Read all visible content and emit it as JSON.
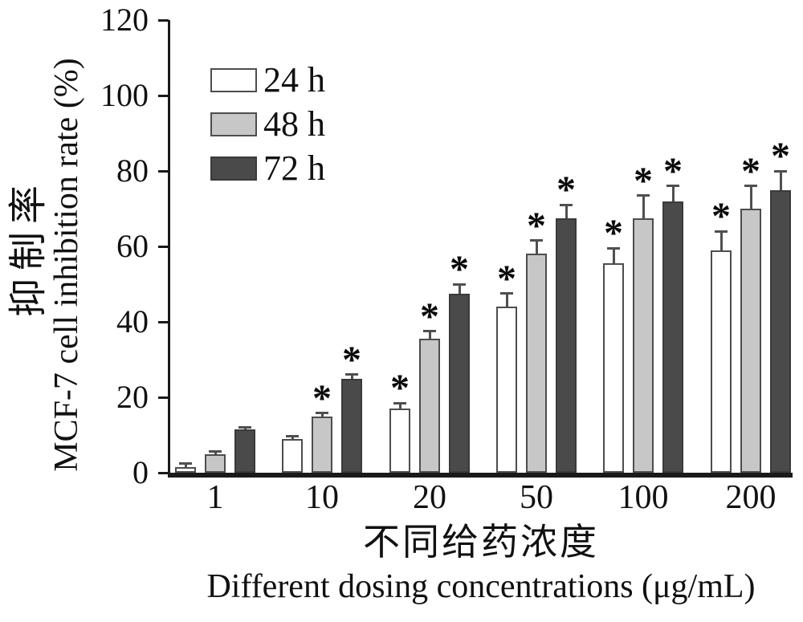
{
  "chart_data": {
    "type": "bar",
    "title": "",
    "categories": [
      "1",
      "10",
      "20",
      "50",
      "100",
      "200"
    ],
    "xlabel_zh": "不同给药浓度",
    "xlabel_en": "Different dosing concentrations (μg/mL)",
    "ylabel_zh": "抑制率",
    "ylabel_en": "MCF-7 cell inhibition rate (%)",
    "ylim": [
      0,
      120
    ],
    "yticks": [
      0,
      20,
      40,
      60,
      80,
      100,
      120
    ],
    "grid": false,
    "legend_position": "upper-left-inside",
    "significance_marker": "*",
    "axis_color": "#1a1a1a",
    "series": [
      {
        "name": "24 h",
        "color": "#ffffff",
        "border": "#4d4d4d",
        "values": [
          1.5,
          9,
          17,
          44,
          55.5,
          59
        ],
        "errors": [
          1,
          0.7,
          1.5,
          3.5,
          4,
          5
        ],
        "significant": [
          false,
          false,
          true,
          true,
          true,
          true
        ]
      },
      {
        "name": "48 h",
        "color": "#c7c7c7",
        "border": "#4d4d4d",
        "values": [
          5,
          15,
          35.5,
          58,
          67.5,
          70
        ],
        "errors": [
          0.6,
          0.8,
          2,
          3.5,
          6,
          6
        ],
        "significant": [
          false,
          true,
          true,
          true,
          true,
          true
        ]
      },
      {
        "name": "72 h",
        "color": "#4a4a4a",
        "border": "#3a3a3a",
        "values": [
          11.5,
          25,
          47.5,
          67.5,
          72,
          75
        ],
        "errors": [
          0.5,
          1,
          2.5,
          3.5,
          4,
          5
        ],
        "significant": [
          false,
          true,
          true,
          true,
          true,
          true
        ]
      }
    ]
  }
}
